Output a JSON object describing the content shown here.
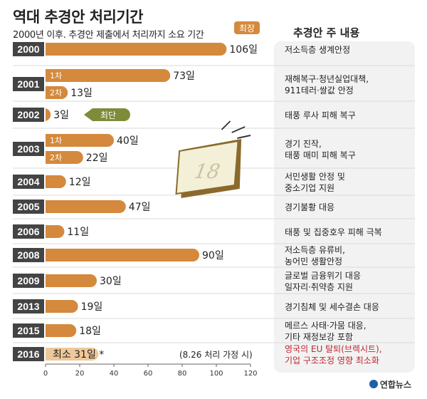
{
  "header": {
    "title": "역대 추경안 처리기간",
    "subtitle": "2000년 이후. 추경안 제출에서 처리까지 소요 기간",
    "right_title": "추경안 주 내용"
  },
  "badges": {
    "longest": "최장",
    "shortest": "최단"
  },
  "footnote": "(8.26 처리 가정 시)",
  "brand": "연합뉴스",
  "colors": {
    "bar": "#d4893c",
    "bar_light": "#efc89a",
    "year_box": "#444444",
    "shortest_badge": "#7f8b3a",
    "longest_badge": "#d4893c",
    "highlight_text": "#c0282f"
  },
  "chart_data": {
    "type": "bar",
    "orientation": "horizontal",
    "title": "역대 추경안 처리기간",
    "xlim": [
      0,
      120
    ],
    "x_ticks": [
      0,
      20,
      40,
      60,
      80,
      100,
      120
    ],
    "unit": "일",
    "rows": [
      {
        "year": "2000",
        "bars": [
          {
            "label": "",
            "value": 106,
            "text": "106일"
          }
        ],
        "content": [
          "저소득층 생계안정"
        ]
      },
      {
        "year": "2001",
        "bars": [
          {
            "label": "1차",
            "value": 73,
            "text": "73일"
          },
          {
            "label": "2차",
            "value": 13,
            "text": "13일"
          }
        ],
        "content": [
          "재해복구·청년실업대책,",
          "911테러·쌀값 안정"
        ]
      },
      {
        "year": "2002",
        "bars": [
          {
            "label": "",
            "value": 3,
            "text": "3일"
          }
        ],
        "content": [
          "태풍 루사 피해 복구"
        ]
      },
      {
        "year": "2003",
        "bars": [
          {
            "label": "1차",
            "value": 40,
            "text": "40일"
          },
          {
            "label": "2차",
            "value": 22,
            "text": "22일"
          }
        ],
        "content": [
          "경기 진작,",
          "태풍 매미 피해 복구"
        ]
      },
      {
        "year": "2004",
        "bars": [
          {
            "label": "",
            "value": 12,
            "text": "12일"
          }
        ],
        "content": [
          "서민생활 안정 및",
          "중소기업 지원"
        ]
      },
      {
        "year": "2005",
        "bars": [
          {
            "label": "",
            "value": 47,
            "text": "47일"
          }
        ],
        "content": [
          "경기불황 대응"
        ]
      },
      {
        "year": "2006",
        "bars": [
          {
            "label": "",
            "value": 11,
            "text": "11일"
          }
        ],
        "content": [
          "태풍 및 집중호우 피해 극복"
        ]
      },
      {
        "year": "2008",
        "bars": [
          {
            "label": "",
            "value": 90,
            "text": "90일"
          }
        ],
        "content": [
          "저소득층 유류비,",
          "농어민 생활안정"
        ]
      },
      {
        "year": "2009",
        "bars": [
          {
            "label": "",
            "value": 30,
            "text": "30일"
          }
        ],
        "content": [
          "글로벌 금융위기 대응",
          "일자리·취약층 지원"
        ]
      },
      {
        "year": "2013",
        "bars": [
          {
            "label": "",
            "value": 19,
            "text": "19일"
          }
        ],
        "content": [
          "경기침체 및 세수결손 대응"
        ]
      },
      {
        "year": "2015",
        "bars": [
          {
            "label": "",
            "value": 18,
            "text": "18일"
          }
        ],
        "content": [
          "메르스 사태·가뭄 대응,",
          "기타 재정보강 포함"
        ]
      },
      {
        "year": "2016",
        "bars": [
          {
            "label": "",
            "value": 31,
            "text": "최소 31일 *"
          }
        ],
        "content": [
          "영국의 EU 탈퇴(브렉시트),",
          "기업 구조조정 영향 최소화"
        ]
      }
    ]
  },
  "illustration": {
    "calendar_day": "18"
  }
}
